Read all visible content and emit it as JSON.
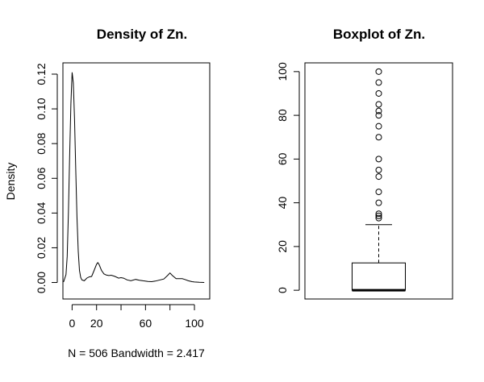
{
  "chart_data": [
    {
      "type": "line",
      "title": "Density of Zn.",
      "xlabel": "N = 506   Bandwidth = 2.417",
      "ylabel": "Density",
      "x_ticks": [
        "0",
        "20",
        "60",
        "100"
      ],
      "y_ticks": [
        "0.00",
        "0.02",
        "0.04",
        "0.06",
        "0.08",
        "0.10",
        "0.12"
      ],
      "xlim": [
        -7.5,
        112.5
      ],
      "ylim": [
        -0.0095,
        0.1265
      ],
      "grid": false,
      "series": [
        {
          "x": [
            -7,
            -5,
            -4,
            -3,
            -2,
            -1,
            0,
            1,
            2,
            3,
            4,
            5,
            6,
            7,
            8,
            10,
            12,
            14,
            16,
            18,
            20,
            21,
            22,
            24,
            26,
            28,
            30,
            32,
            35,
            38,
            40,
            42,
            45,
            48,
            52,
            55,
            58,
            62,
            65,
            68,
            72,
            75,
            78,
            80,
            82,
            85,
            88,
            90,
            92,
            95,
            98,
            100,
            104,
            108
          ],
          "y": [
            0.0003,
            0.0045,
            0.015,
            0.04,
            0.072,
            0.103,
            0.121,
            0.115,
            0.094,
            0.065,
            0.038,
            0.018,
            0.007,
            0.003,
            0.0015,
            0.001,
            0.0025,
            0.0032,
            0.0035,
            0.007,
            0.0105,
            0.0115,
            0.0105,
            0.007,
            0.005,
            0.0043,
            0.004,
            0.0042,
            0.0035,
            0.0025,
            0.0028,
            0.0025,
            0.0015,
            0.001,
            0.0018,
            0.0013,
            0.001,
            0.0006,
            0.0005,
            0.0008,
            0.0015,
            0.002,
            0.004,
            0.0055,
            0.004,
            0.0022,
            0.0022,
            0.0022,
            0.0018,
            0.001,
            0.0005,
            0.0003,
            0.0001,
            0.0
          ]
        }
      ]
    },
    {
      "type": "box",
      "title": "Boxplot of Zn.",
      "y_ticks": [
        "0",
        "20",
        "40",
        "60",
        "80",
        "100"
      ],
      "ylim": [
        -4,
        104
      ],
      "min": 0,
      "q1": 0,
      "median": 0,
      "q3": 12.5,
      "whisker_high": 30,
      "outliers": [
        33,
        34,
        35,
        40,
        45,
        52,
        55,
        60,
        70,
        75,
        80,
        82,
        85,
        90,
        95,
        100
      ]
    }
  ]
}
